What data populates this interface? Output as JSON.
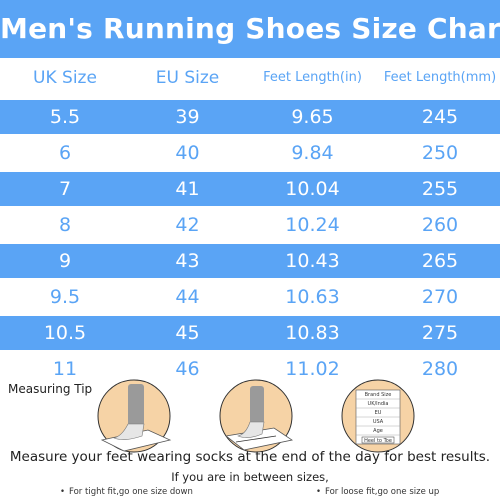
{
  "title": "Men's Running Shoes Size Chart",
  "headers": {
    "uk": "UK Size",
    "eu": "EU Size",
    "feet_in": "Feet Length(in)",
    "feet_mm": "Feet Length(mm)"
  },
  "rows": [
    {
      "uk": "5.5",
      "eu": "39",
      "in": "9.65",
      "mm": "245"
    },
    {
      "uk": "6",
      "eu": "40",
      "in": "9.84",
      "mm": "250"
    },
    {
      "uk": "7",
      "eu": "41",
      "in": "10.04",
      "mm": "255"
    },
    {
      "uk": "8",
      "eu": "42",
      "in": "10.24",
      "mm": "260"
    },
    {
      "uk": "9",
      "eu": "43",
      "in": "10.43",
      "mm": "265"
    },
    {
      "uk": "9.5",
      "eu": "44",
      "in": "10.63",
      "mm": "270"
    },
    {
      "uk": "10.5",
      "eu": "45",
      "in": "10.83",
      "mm": "275"
    },
    {
      "uk": "11",
      "eu": "46",
      "in": "11.02",
      "mm": "280"
    }
  ],
  "measuring_tip": "Measuring Tip",
  "size_card": [
    "Brand Size",
    "UK/India",
    "EU",
    "USA",
    "Age",
    "Heel to Toe"
  ],
  "measure_text": "Measure your feet wearing socks at the end of the day for best results.",
  "between_text": "If you are in between sizes,",
  "tight_tip": "For tight fit,go one size down",
  "loose_tip": "For loose fit,go one size up",
  "colors": {
    "accent": "#5aa4f5",
    "text": "#222222"
  }
}
